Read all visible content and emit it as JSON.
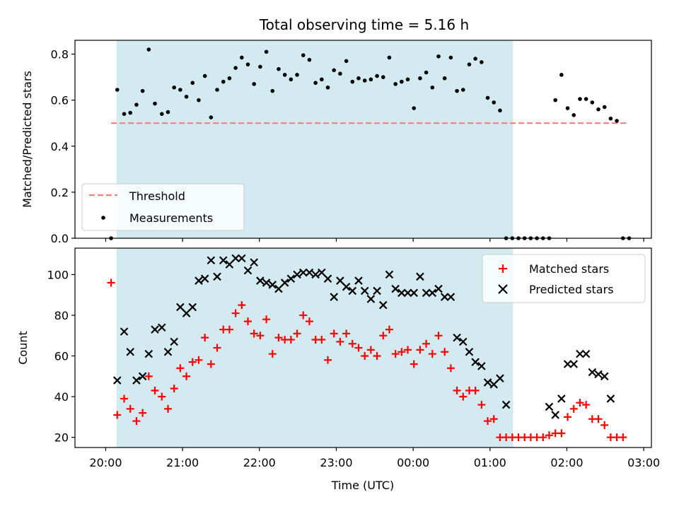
{
  "chart_data": [
    {
      "type": "scatter",
      "panel": "top",
      "title": "Total observing time = 5.16 h",
      "xlabel": "",
      "ylabel": "Matched/Predicted stars",
      "x_unit": "hours after 20:00 UTC",
      "xlim": [
        -0.4,
        7.1
      ],
      "ylim": [
        0.0,
        0.86
      ],
      "yticks": [
        0.0,
        0.2,
        0.4,
        0.6,
        0.8
      ],
      "ytick_labels": [
        "0.0",
        "0.2",
        "0.4",
        "0.6",
        "0.8"
      ],
      "shaded_interval": [
        0.14,
        5.3
      ],
      "shade_color": "#d3eaf0",
      "threshold": {
        "name": "Threshold",
        "value": 0.5,
        "x_range": [
          0.07,
          6.8
        ],
        "color": "#f08080"
      },
      "legend": {
        "placement": "lower-left",
        "entries": [
          "Threshold",
          "Measurements"
        ]
      },
      "series": [
        {
          "name": "Measurements",
          "color": "#000000",
          "marker": "dot",
          "points": [
            [
              0.07,
              0.0
            ],
            [
              0.15,
              0.645
            ],
            [
              0.24,
              0.54
            ],
            [
              0.32,
              0.545
            ],
            [
              0.4,
              0.58
            ],
            [
              0.48,
              0.64
            ],
            [
              0.56,
              0.82
            ],
            [
              0.64,
              0.585
            ],
            [
              0.73,
              0.54
            ],
            [
              0.81,
              0.548
            ],
            [
              0.89,
              0.655
            ],
            [
              0.97,
              0.645
            ],
            [
              1.05,
              0.615
            ],
            [
              1.13,
              0.675
            ],
            [
              1.21,
              0.6
            ],
            [
              1.29,
              0.705
            ],
            [
              1.37,
              0.525
            ],
            [
              1.45,
              0.645
            ],
            [
              1.53,
              0.68
            ],
            [
              1.61,
              0.695
            ],
            [
              1.69,
              0.74
            ],
            [
              1.77,
              0.785
            ],
            [
              1.85,
              0.755
            ],
            [
              1.93,
              0.67
            ],
            [
              2.01,
              0.745
            ],
            [
              2.09,
              0.81
            ],
            [
              2.17,
              0.64
            ],
            [
              2.25,
              0.735
            ],
            [
              2.33,
              0.71
            ],
            [
              2.41,
              0.69
            ],
            [
              2.49,
              0.71
            ],
            [
              2.57,
              0.795
            ],
            [
              2.65,
              0.775
            ],
            [
              2.73,
              0.675
            ],
            [
              2.81,
              0.69
            ],
            [
              2.89,
              0.655
            ],
            [
              2.97,
              0.73
            ],
            [
              3.05,
              0.715
            ],
            [
              3.13,
              0.77
            ],
            [
              3.21,
              0.68
            ],
            [
              3.29,
              0.695
            ],
            [
              3.37,
              0.685
            ],
            [
              3.45,
              0.69
            ],
            [
              3.53,
              0.705
            ],
            [
              3.61,
              0.7
            ],
            [
              3.69,
              0.785
            ],
            [
              3.77,
              0.67
            ],
            [
              3.85,
              0.68
            ],
            [
              3.93,
              0.69
            ],
            [
              4.01,
              0.565
            ],
            [
              4.09,
              0.695
            ],
            [
              4.17,
              0.72
            ],
            [
              4.25,
              0.655
            ],
            [
              4.33,
              0.79
            ],
            [
              4.41,
              0.695
            ],
            [
              4.49,
              0.785
            ],
            [
              4.57,
              0.64
            ],
            [
              4.65,
              0.645
            ],
            [
              4.73,
              0.755
            ],
            [
              4.81,
              0.78
            ],
            [
              4.89,
              0.765
            ],
            [
              4.97,
              0.61
            ],
            [
              5.05,
              0.59
            ],
            [
              5.13,
              0.555
            ],
            [
              5.21,
              0.0
            ],
            [
              5.29,
              0.0
            ],
            [
              5.37,
              0.0
            ],
            [
              5.45,
              0.0
            ],
            [
              5.53,
              0.0
            ],
            [
              5.61,
              0.0
            ],
            [
              5.69,
              0.0
            ],
            [
              5.77,
              0.0
            ],
            [
              5.85,
              0.6
            ],
            [
              5.93,
              0.71
            ],
            [
              6.01,
              0.565
            ],
            [
              6.09,
              0.535
            ],
            [
              6.17,
              0.605
            ],
            [
              6.25,
              0.605
            ],
            [
              6.33,
              0.59
            ],
            [
              6.41,
              0.56
            ],
            [
              6.49,
              0.57
            ],
            [
              6.57,
              0.52
            ],
            [
              6.65,
              0.51
            ],
            [
              6.73,
              0.0
            ],
            [
              6.81,
              0.0
            ]
          ]
        }
      ]
    },
    {
      "type": "scatter",
      "panel": "bottom",
      "xlabel": "Time (UTC)",
      "ylabel": "Count",
      "x_unit": "hours after 20:00 UTC",
      "xlim": [
        -0.4,
        7.1
      ],
      "ylim": [
        15,
        113
      ],
      "xticks": [
        0,
        1,
        2,
        3,
        4,
        5,
        6,
        7
      ],
      "xtick_labels": [
        "20:00",
        "21:00",
        "22:00",
        "23:00",
        "00:00",
        "01:00",
        "02:00",
        "03:00"
      ],
      "yticks": [
        20,
        40,
        60,
        80,
        100
      ],
      "ytick_labels": [
        "20",
        "40",
        "60",
        "80",
        "100"
      ],
      "shaded_interval": [
        0.14,
        5.3
      ],
      "shade_color": "#d3eaf0",
      "legend": {
        "placement": "upper-right",
        "entries": [
          "Matched stars",
          "Predicted stars"
        ]
      },
      "series": [
        {
          "name": "Matched stars",
          "color": "#ff0000",
          "marker": "plus",
          "points": [
            [
              0.07,
              96
            ],
            [
              0.15,
              31
            ],
            [
              0.24,
              39
            ],
            [
              0.32,
              34
            ],
            [
              0.4,
              28
            ],
            [
              0.48,
              32
            ],
            [
              0.56,
              50
            ],
            [
              0.64,
              43
            ],
            [
              0.73,
              40
            ],
            [
              0.81,
              34
            ],
            [
              0.89,
              44
            ],
            [
              0.97,
              54
            ],
            [
              1.05,
              50
            ],
            [
              1.13,
              57
            ],
            [
              1.21,
              58
            ],
            [
              1.29,
              69
            ],
            [
              1.37,
              56
            ],
            [
              1.45,
              64
            ],
            [
              1.53,
              73
            ],
            [
              1.61,
              73
            ],
            [
              1.69,
              81
            ],
            [
              1.77,
              85
            ],
            [
              1.85,
              77
            ],
            [
              1.93,
              71
            ],
            [
              2.01,
              70
            ],
            [
              2.09,
              78
            ],
            [
              2.17,
              61
            ],
            [
              2.25,
              69
            ],
            [
              2.33,
              68
            ],
            [
              2.41,
              68
            ],
            [
              2.49,
              71
            ],
            [
              2.57,
              80
            ],
            [
              2.65,
              77
            ],
            [
              2.73,
              68
            ],
            [
              2.81,
              68
            ],
            [
              2.89,
              58
            ],
            [
              2.97,
              71
            ],
            [
              3.05,
              67
            ],
            [
              3.13,
              71
            ],
            [
              3.21,
              66
            ],
            [
              3.29,
              64
            ],
            [
              3.37,
              60
            ],
            [
              3.45,
              63
            ],
            [
              3.53,
              60
            ],
            [
              3.61,
              70
            ],
            [
              3.69,
              73
            ],
            [
              3.77,
              61
            ],
            [
              3.85,
              62
            ],
            [
              3.93,
              63
            ],
            [
              4.01,
              56
            ],
            [
              4.09,
              63
            ],
            [
              4.17,
              66
            ],
            [
              4.25,
              61
            ],
            [
              4.33,
              70
            ],
            [
              4.41,
              62
            ],
            [
              4.49,
              54
            ],
            [
              4.57,
              43
            ],
            [
              4.65,
              40
            ],
            [
              4.73,
              43
            ],
            [
              4.81,
              43
            ],
            [
              4.89,
              36
            ],
            [
              4.97,
              28
            ],
            [
              5.05,
              29
            ],
            [
              5.13,
              20
            ],
            [
              5.21,
              20
            ],
            [
              5.29,
              20
            ],
            [
              5.37,
              20
            ],
            [
              5.45,
              20
            ],
            [
              5.53,
              20
            ],
            [
              5.61,
              20
            ],
            [
              5.69,
              20
            ],
            [
              5.77,
              21
            ],
            [
              5.85,
              22
            ],
            [
              5.93,
              22
            ],
            [
              6.01,
              30
            ],
            [
              6.09,
              34
            ],
            [
              6.17,
              37
            ],
            [
              6.25,
              36
            ],
            [
              6.33,
              29
            ],
            [
              6.41,
              29
            ],
            [
              6.49,
              26
            ],
            [
              6.57,
              20
            ],
            [
              6.65,
              20
            ],
            [
              6.73,
              20
            ]
          ]
        },
        {
          "name": "Predicted stars",
          "color": "#000000",
          "marker": "x",
          "points": [
            [
              0.15,
              48
            ],
            [
              0.24,
              72
            ],
            [
              0.32,
              62
            ],
            [
              0.4,
              48
            ],
            [
              0.48,
              50
            ],
            [
              0.56,
              61
            ],
            [
              0.64,
              73
            ],
            [
              0.73,
              74
            ],
            [
              0.81,
              62
            ],
            [
              0.89,
              67
            ],
            [
              0.97,
              84
            ],
            [
              1.05,
              81
            ],
            [
              1.13,
              84
            ],
            [
              1.21,
              97
            ],
            [
              1.29,
              98
            ],
            [
              1.37,
              107
            ],
            [
              1.45,
              99
            ],
            [
              1.53,
              107
            ],
            [
              1.61,
              105
            ],
            [
              1.69,
              108
            ],
            [
              1.77,
              108
            ],
            [
              1.85,
              102
            ],
            [
              1.93,
              106
            ],
            [
              2.01,
              97
            ],
            [
              2.09,
              96
            ],
            [
              2.17,
              95
            ],
            [
              2.25,
              93
            ],
            [
              2.33,
              96
            ],
            [
              2.41,
              98
            ],
            [
              2.49,
              100
            ],
            [
              2.57,
              101
            ],
            [
              2.65,
              101
            ],
            [
              2.73,
              100
            ],
            [
              2.81,
              101
            ],
            [
              2.89,
              98
            ],
            [
              2.97,
              89
            ],
            [
              3.05,
              97
            ],
            [
              3.13,
              94
            ],
            [
              3.21,
              92
            ],
            [
              3.29,
              97
            ],
            [
              3.37,
              92
            ],
            [
              3.45,
              88
            ],
            [
              3.53,
              92
            ],
            [
              3.61,
              85
            ],
            [
              3.69,
              100
            ],
            [
              3.77,
              93
            ],
            [
              3.85,
              91
            ],
            [
              3.93,
              91
            ],
            [
              4.01,
              91
            ],
            [
              4.09,
              99
            ],
            [
              4.17,
              91
            ],
            [
              4.25,
              91
            ],
            [
              4.33,
              93
            ],
            [
              4.41,
              89
            ],
            [
              4.49,
              89
            ],
            [
              4.57,
              69
            ],
            [
              4.65,
              67
            ],
            [
              4.73,
              62
            ],
            [
              4.81,
              57
            ],
            [
              4.89,
              55
            ],
            [
              4.97,
              47
            ],
            [
              5.05,
              46
            ],
            [
              5.13,
              49
            ],
            [
              5.21,
              36
            ],
            [
              5.77,
              35
            ],
            [
              5.85,
              31
            ],
            [
              5.93,
              39
            ],
            [
              6.01,
              56
            ],
            [
              6.09,
              56
            ],
            [
              6.17,
              61
            ],
            [
              6.25,
              61
            ],
            [
              6.33,
              52
            ],
            [
              6.41,
              51
            ],
            [
              6.49,
              50
            ],
            [
              6.57,
              39
            ]
          ]
        }
      ]
    }
  ]
}
